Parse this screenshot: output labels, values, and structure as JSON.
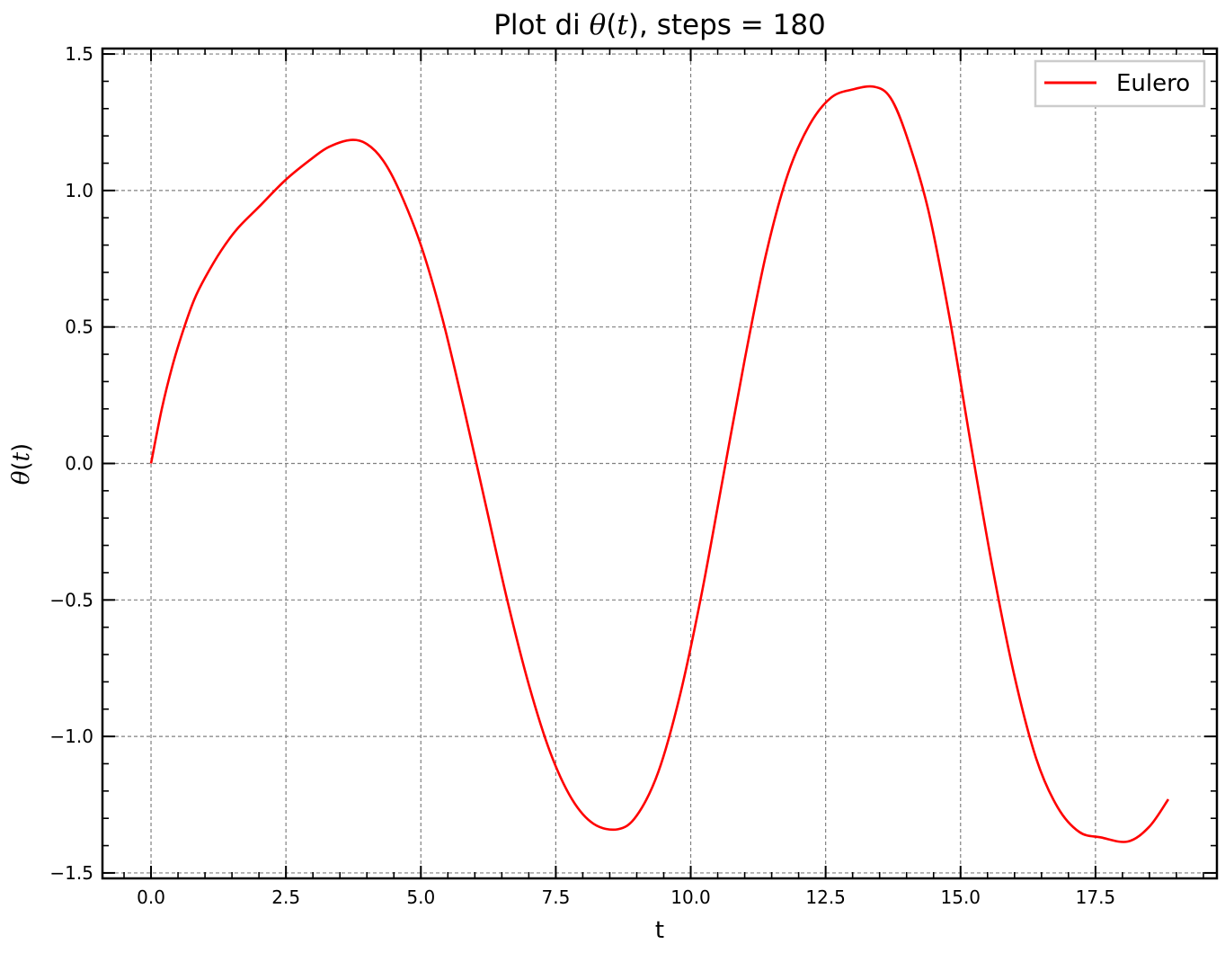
{
  "chart_data": {
    "type": "line",
    "title": {
      "prefix": "Plot di ",
      "theta": "θ",
      "open": "(",
      "var": "t",
      "close": ")",
      "suffix": ", steps = 180"
    },
    "xlabel": "t",
    "ylabel": {
      "theta": "θ",
      "open": "(",
      "var": "t",
      "close": ")"
    },
    "xlim": [
      -0.9,
      19.75
    ],
    "ylim": [
      -1.52,
      1.52
    ],
    "x_ticks": [
      0,
      2.5,
      5,
      7.5,
      10,
      12.5,
      15,
      17.5
    ],
    "x_tick_labels": [
      "0.0",
      "2.5",
      "5.0",
      "7.5",
      "10.0",
      "12.5",
      "15.0",
      "17.5"
    ],
    "y_ticks": [
      -1.5,
      -1.0,
      -0.5,
      0.0,
      0.5,
      1.0,
      1.5
    ],
    "y_tick_labels": [
      "−1.5",
      "−1.0",
      "−0.5",
      "0.0",
      "0.5",
      "1.0",
      "1.5"
    ],
    "grid": true,
    "legend": "top-right",
    "series": [
      {
        "name": "Eulero",
        "color": "#ff0000",
        "x": [
          0.0,
          0.2,
          0.4,
          0.6,
          0.8,
          1.0,
          1.3,
          1.6,
          2.0,
          2.5,
          3.0,
          3.3,
          3.7,
          4.0,
          4.3,
          4.6,
          5.0,
          5.4,
          5.8,
          6.2,
          6.6,
          7.0,
          7.4,
          7.8,
          8.2,
          8.65,
          9.0,
          9.4,
          9.8,
          10.2,
          10.6,
          11.0,
          11.4,
          11.8,
          12.2,
          12.6,
          13.0,
          13.4,
          13.7,
          14.0,
          14.4,
          14.8,
          15.2,
          15.6,
          16.0,
          16.4,
          16.8,
          17.2,
          17.6,
          18.1,
          18.5,
          18.85
        ],
        "y": [
          0.0,
          0.2,
          0.36,
          0.49,
          0.6,
          0.68,
          0.78,
          0.86,
          0.94,
          1.04,
          1.12,
          1.16,
          1.185,
          1.17,
          1.11,
          1.0,
          0.8,
          0.53,
          0.2,
          -0.15,
          -0.5,
          -0.81,
          -1.06,
          -1.23,
          -1.32,
          -1.34,
          -1.29,
          -1.13,
          -0.85,
          -0.48,
          -0.05,
          0.38,
          0.77,
          1.06,
          1.24,
          1.34,
          1.37,
          1.38,
          1.34,
          1.2,
          0.93,
          0.53,
          0.06,
          -0.39,
          -0.78,
          -1.08,
          -1.26,
          -1.35,
          -1.37,
          -1.385,
          -1.33,
          -1.23
        ]
      }
    ]
  }
}
